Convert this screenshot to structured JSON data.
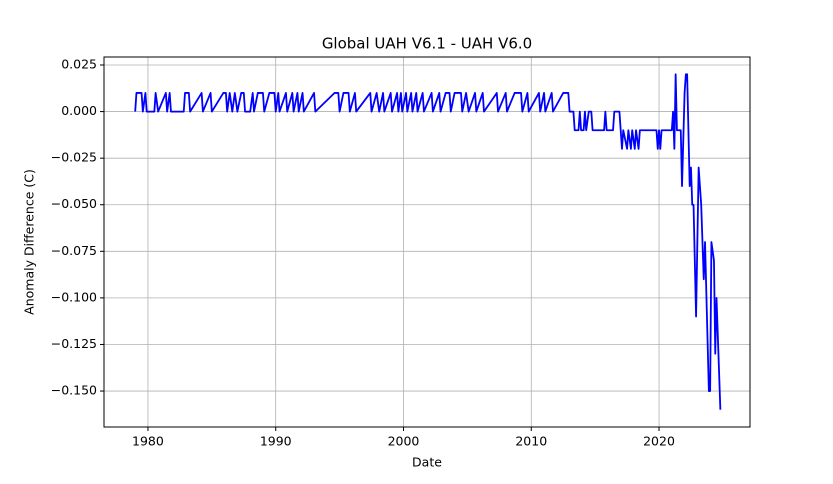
{
  "chart_data": {
    "type": "line",
    "title": "Global UAH V6.1 - UAH V6.0",
    "x_label": "Date",
    "y_label": "Anomaly Difference (C)",
    "grid": true,
    "xlim": [
      1976.56,
      2027.12
    ],
    "ylim": [
      -0.1693,
      0.0293
    ],
    "xticks": [
      1980,
      1990,
      2000,
      2010,
      2020
    ],
    "yticks": [
      0.025,
      {
        "value": 0,
        "label": "0.000"
      },
      {
        "value": -0.025,
        "label": "−0.025"
      },
      {
        "value": -0.05,
        "label": "−0.050"
      },
      {
        "value": -0.075,
        "label": "−0.075"
      },
      {
        "value": -0.1,
        "label": "−0.100"
      },
      {
        "value": -0.125,
        "label": "−0.125"
      },
      {
        "value": -0.15,
        "label": "−0.150"
      }
    ],
    "series": [
      {
        "color": "#0000ff",
        "x": [
          1979.0,
          1979.1,
          1979.5,
          1979.6,
          1979.8,
          1979.9,
          1980.5,
          1980.6,
          1980.8,
          1981.4,
          1981.5,
          1981.7,
          1981.8,
          1982.8,
          1982.9,
          1983.2,
          1983.3,
          1984.2,
          1984.3,
          1984.9,
          1985.0,
          1985.9,
          1986.1,
          1986.2,
          1986.4,
          1986.6,
          1986.8,
          1987.0,
          1987.3,
          1987.5,
          1987.6,
          1988.0,
          1988.2,
          1988.3,
          1988.6,
          1989.0,
          1989.1,
          1989.5,
          1989.9,
          1990.0,
          1990.2,
          1990.3,
          1990.8,
          1990.9,
          1991.3,
          1991.4,
          1991.7,
          1991.8,
          1992.1,
          1992.2,
          1993.0,
          1993.1,
          1994.6,
          1994.9,
          1995.0,
          1995.3,
          1995.7,
          1995.8,
          1996.2,
          1996.3,
          1997.4,
          1997.5,
          1997.9,
          1998.1,
          1998.4,
          1998.5,
          1999.0,
          1999.1,
          1999.5,
          1999.6,
          1999.8,
          1999.9,
          2000.2,
          2000.3,
          2000.6,
          2000.7,
          2001.0,
          2001.1,
          2001.5,
          2001.6,
          2002.2,
          2002.3,
          2002.8,
          2002.9,
          2003.3,
          2003.6,
          2003.7,
          2004.0,
          2004.5,
          2004.6,
          2004.9,
          2005.1,
          2005.6,
          2005.7,
          2006.2,
          2006.3,
          2007.3,
          2007.4,
          2008.0,
          2008.1,
          2008.7,
          2009.2,
          2009.3,
          2009.7,
          2009.8,
          2010.6,
          2010.7,
          2011.0,
          2011.1,
          2011.6,
          2011.7,
          2012.5,
          2012.9,
          2013.0,
          2013.3,
          2013.4,
          2013.7,
          2013.8,
          2013.9,
          2014.1,
          2014.2,
          2014.3,
          2014.5,
          2014.7,
          2014.8,
          2015.7,
          2015.8,
          2015.9,
          2016.4,
          2016.5,
          2016.9,
          2017.0,
          2017.1,
          2017.2,
          2017.5,
          2017.6,
          2017.8,
          2017.9,
          2018.1,
          2018.2,
          2018.4,
          2018.5,
          2019.8,
          2019.9,
          2020.0,
          2020.1,
          2020.2,
          2021.0,
          2021.1,
          2021.2,
          2021.3,
          2021.4,
          2021.7,
          2021.8,
          2022.0,
          2022.1,
          2022.2,
          2022.4,
          2022.5,
          2022.6,
          2022.7,
          2022.9,
          2023.1,
          2023.3,
          2023.5,
          2023.6,
          2023.9,
          2024.0,
          2024.1,
          2024.3,
          2024.4,
          2024.5,
          2024.8
        ],
        "values": [
          0,
          0.01,
          0.01,
          0,
          0.01,
          0,
          0,
          0.01,
          0,
          0.01,
          0,
          0.01,
          0,
          0,
          0.01,
          0.01,
          0,
          0.01,
          0,
          0.01,
          0,
          0.01,
          0.01,
          0,
          0.01,
          0,
          0.01,
          0,
          0.01,
          0.01,
          0,
          0,
          0.01,
          0,
          0.01,
          0.01,
          0,
          0.01,
          0.01,
          0,
          0.01,
          0,
          0.01,
          0,
          0.01,
          0,
          0.01,
          0,
          0.01,
          0,
          0.01,
          0,
          0.01,
          0.01,
          0,
          0.01,
          0.01,
          0,
          0.01,
          0,
          0.01,
          0,
          0.01,
          0,
          0.01,
          0,
          0.01,
          0,
          0.01,
          0,
          0.01,
          0,
          0.01,
          0,
          0.01,
          0,
          0.01,
          0,
          0.01,
          0,
          0.01,
          0,
          0.01,
          0,
          0.01,
          0.01,
          0,
          0.01,
          0.01,
          0,
          0.01,
          0,
          0.01,
          0,
          0.01,
          0,
          0.01,
          0,
          0.01,
          0,
          0.01,
          0.01,
          0,
          0.01,
          0,
          0.01,
          0,
          0.01,
          0,
          0.01,
          0,
          0.01,
          0.01,
          0,
          0,
          -0.01,
          -0.01,
          0,
          -0.01,
          -0.01,
          0,
          -0.01,
          0,
          0,
          -0.01,
          -0.01,
          0,
          -0.01,
          -0.01,
          0,
          0,
          -0.01,
          -0.02,
          -0.01,
          -0.02,
          -0.01,
          -0.02,
          -0.01,
          -0.02,
          -0.01,
          -0.02,
          -0.01,
          -0.01,
          -0.02,
          -0.01,
          -0.02,
          -0.01,
          -0.01,
          0,
          -0.02,
          0.02,
          -0.01,
          -0.01,
          -0.04,
          0.01,
          0.02,
          0.02,
          -0.04,
          -0.03,
          -0.05,
          -0.05,
          -0.11,
          -0.03,
          -0.05,
          -0.09,
          -0.07,
          -0.15,
          -0.15,
          -0.07,
          -0.08,
          -0.13,
          -0.1,
          -0.16
        ]
      }
    ]
  }
}
